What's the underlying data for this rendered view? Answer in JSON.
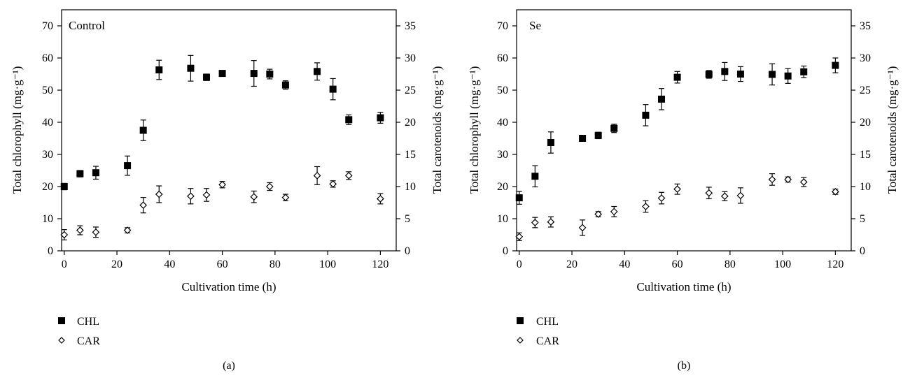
{
  "chart_data": [
    {
      "type": "scatter",
      "panel_label": "(a)",
      "title": "Control",
      "xlabel": "Cultivation time (h)",
      "ylabel_left": "Total chlorophyll (mg·g⁻¹)",
      "ylabel_right": "Total carotenoids (mg·g⁻¹)",
      "xlim": [
        -1,
        126
      ],
      "xticks": [
        0,
        20,
        40,
        60,
        80,
        100,
        120
      ],
      "ylim_left": [
        0,
        75
      ],
      "yticks_left": [
        0,
        10,
        20,
        30,
        40,
        50,
        60,
        70
      ],
      "ylim_right": [
        0,
        37.5
      ],
      "yticks_right": [
        0,
        5,
        10,
        15,
        20,
        25,
        30,
        35
      ],
      "legend_position": "below-left",
      "series": [
        {
          "name": "CHL",
          "marker": "filled-square",
          "axis": "left",
          "x": [
            0,
            6,
            12,
            24,
            30,
            36,
            48,
            54,
            60,
            72,
            78,
            84,
            96,
            102,
            108,
            120
          ],
          "y": [
            20,
            24,
            24.3,
            26.5,
            37.5,
            56.3,
            56.8,
            54,
            55.2,
            55.2,
            55,
            51.6,
            55.8,
            50.3,
            40.8,
            41.4
          ],
          "err": [
            1,
            1,
            2,
            3,
            3.2,
            3,
            4,
            1,
            0.8,
            4,
            1.5,
            1.3,
            2.7,
            3.3,
            1.5,
            1.7
          ]
        },
        {
          "name": "CAR",
          "marker": "open-diamond",
          "axis": "right",
          "x": [
            0,
            6,
            12,
            24,
            30,
            36,
            48,
            54,
            60,
            72,
            78,
            84,
            96,
            102,
            108,
            120
          ],
          "y": [
            2.5,
            3.2,
            2.9,
            3.2,
            7.1,
            8.8,
            8.5,
            8.7,
            10.3,
            8.4,
            10,
            8.3,
            11.7,
            10.4,
            11.7,
            8.1
          ],
          "err": [
            0.8,
            0.7,
            0.8,
            0.4,
            1.2,
            1.3,
            1.2,
            1,
            0.5,
            0.9,
            0.6,
            0.5,
            1.4,
            0.5,
            0.6,
            0.8
          ]
        }
      ]
    },
    {
      "type": "scatter",
      "panel_label": "(b)",
      "title": "Se",
      "xlabel": "Cultivation time (h)",
      "ylabel_left": "Total chlorophyll (mg·g⁻¹)",
      "ylabel_right": "Total carotenoids (mg·g⁻¹)",
      "xlim": [
        -1,
        126
      ],
      "xticks": [
        0,
        20,
        40,
        60,
        80,
        100,
        120
      ],
      "ylim_left": [
        0,
        75
      ],
      "yticks_left": [
        0,
        10,
        20,
        30,
        40,
        50,
        60,
        70
      ],
      "ylim_right": [
        0,
        37.5
      ],
      "yticks_right": [
        0,
        5,
        10,
        15,
        20,
        25,
        30,
        35
      ],
      "legend_position": "below-left",
      "series": [
        {
          "name": "CHL",
          "marker": "filled-square",
          "axis": "left",
          "x": [
            0,
            6,
            12,
            24,
            30,
            36,
            48,
            54,
            60,
            72,
            78,
            84,
            96,
            102,
            108,
            120
          ],
          "y": [
            16.5,
            23.2,
            33.7,
            35,
            35.9,
            38.1,
            42.2,
            47.2,
            54,
            54.9,
            55.8,
            55,
            54.9,
            54.4,
            55.7,
            57.7
          ],
          "err": [
            2,
            3.3,
            3.3,
            0.8,
            1,
            1.3,
            3.3,
            3.3,
            1.8,
            1.2,
            2.8,
            2.3,
            3.3,
            2.3,
            1.8,
            2.3
          ]
        },
        {
          "name": "CAR",
          "marker": "open-diamond",
          "axis": "right",
          "x": [
            0,
            6,
            12,
            24,
            30,
            36,
            48,
            54,
            60,
            72,
            78,
            84,
            96,
            102,
            108,
            120
          ],
          "y": [
            2.2,
            4.4,
            4.5,
            3.6,
            5.7,
            6.1,
            6.9,
            8.2,
            9.6,
            9,
            8.5,
            8.6,
            11.1,
            11.1,
            10.7,
            9.2
          ],
          "err": [
            0.6,
            0.8,
            0.8,
            1.2,
            0.4,
            0.8,
            0.9,
            0.9,
            0.8,
            0.9,
            0.7,
            1.2,
            0.9,
            0.4,
            0.7,
            0.4
          ]
        }
      ]
    }
  ]
}
